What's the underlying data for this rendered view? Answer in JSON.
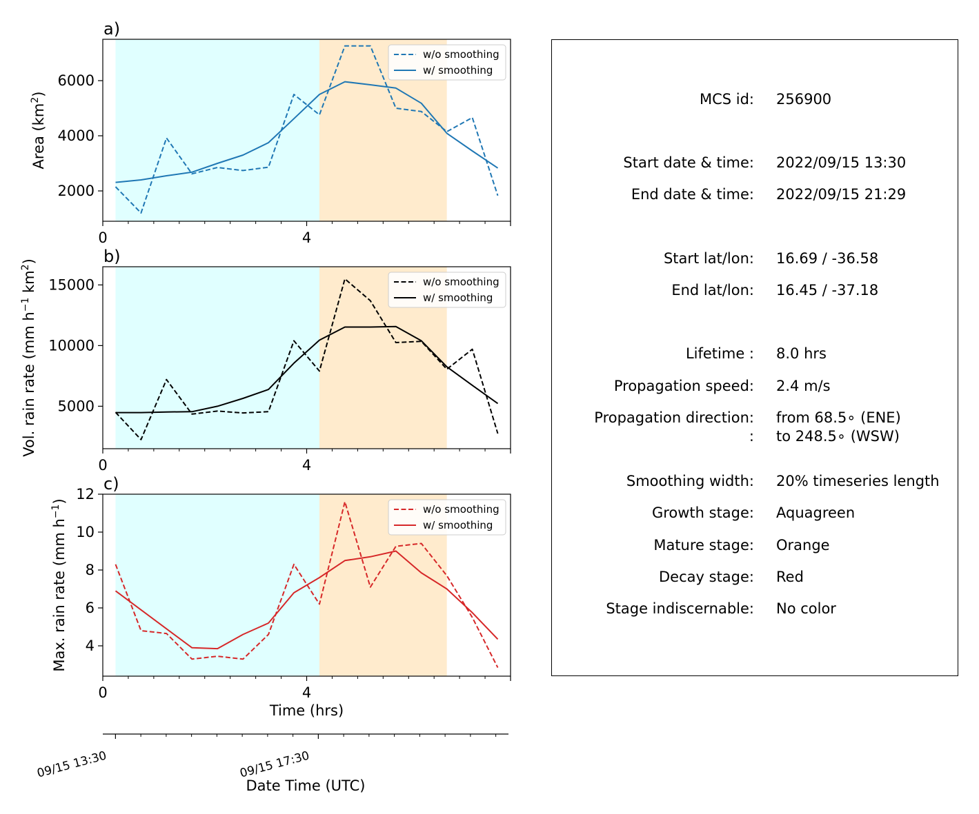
{
  "chart_data": [
    {
      "type": "line",
      "panel_label": "a)",
      "ylabel": "Area  (km²)",
      "xlim": [
        0,
        8
      ],
      "ylim": [
        900,
        7500
      ],
      "yticks": [
        2000,
        4000,
        6000
      ],
      "xtick_labels": [
        "0",
        "4"
      ],
      "stage_shading": {
        "growth": [
          0.25,
          4.25
        ],
        "mature": [
          4.25,
          6.75
        ]
      },
      "legend": {
        "position": "top-right",
        "entries": [
          "w/o smoothing",
          "w/ smoothing"
        ]
      },
      "color": "#1f77b4",
      "x": [
        0.25,
        0.75,
        1.25,
        1.75,
        2.25,
        2.75,
        3.25,
        3.75,
        4.25,
        4.75,
        5.25,
        5.75,
        6.25,
        6.75,
        7.25,
        7.75
      ],
      "series": [
        {
          "name": "w/o smoothing",
          "style": "dashed",
          "values": [
            2150,
            1200,
            3920,
            2620,
            2850,
            2740,
            2860,
            5500,
            4760,
            7260,
            7260,
            5000,
            4880,
            4150,
            4660,
            1830
          ]
        },
        {
          "name": "w/ smoothing",
          "style": "solid",
          "values": [
            2310,
            2400,
            2550,
            2680,
            3000,
            3300,
            3750,
            4620,
            5500,
            5960,
            5850,
            5730,
            5180,
            4090,
            3450,
            2830
          ]
        }
      ]
    },
    {
      "type": "line",
      "panel_label": "b)",
      "ylabel": "Vol. rain rate (mm h⁻¹ km²)",
      "xlim": [
        0,
        8
      ],
      "ylim": [
        1500,
        16500
      ],
      "yticks": [
        5000,
        10000,
        15000
      ],
      "xtick_labels": [
        "0",
        "4"
      ],
      "stage_shading": {
        "growth": [
          0.25,
          4.25
        ],
        "mature": [
          4.25,
          6.75
        ]
      },
      "legend": {
        "position": "top-right",
        "entries": [
          "w/o smoothing",
          "w/ smoothing"
        ]
      },
      "color": "#000000",
      "x": [
        0.25,
        0.75,
        1.25,
        1.75,
        2.25,
        2.75,
        3.25,
        3.75,
        4.25,
        4.75,
        5.25,
        5.75,
        6.25,
        6.75,
        7.25,
        7.75
      ],
      "series": [
        {
          "name": "w/o smoothing",
          "style": "dashed",
          "values": [
            4500,
            2250,
            7200,
            4350,
            4600,
            4450,
            4550,
            10400,
            7900,
            15500,
            13700,
            10250,
            10350,
            8050,
            9700,
            2750
          ]
        },
        {
          "name": "w/ smoothing",
          "style": "solid",
          "values": [
            4480,
            4480,
            4530,
            4550,
            5000,
            5650,
            6380,
            8550,
            10450,
            11530,
            11530,
            11570,
            10400,
            8250,
            6720,
            5230
          ]
        }
      ]
    },
    {
      "type": "line",
      "panel_label": "c)",
      "ylabel": "Max. rain rate  (mm h⁻¹)",
      "xlabel": "Time (hrs)",
      "xlim": [
        0,
        8
      ],
      "ylim": [
        2.4,
        12
      ],
      "yticks": [
        4,
        6,
        8,
        10,
        12
      ],
      "xtick_labels": [
        "0",
        "4"
      ],
      "stage_shading": {
        "growth": [
          0.25,
          4.25
        ],
        "mature": [
          4.25,
          6.75
        ]
      },
      "legend": {
        "position": "top-right",
        "entries": [
          "w/o smoothing",
          "w/ smoothing"
        ]
      },
      "color": "#d62728",
      "x": [
        0.25,
        0.75,
        1.25,
        1.75,
        2.25,
        2.75,
        3.25,
        3.75,
        4.25,
        4.75,
        5.25,
        5.75,
        6.25,
        6.75,
        7.25,
        7.75
      ],
      "series": [
        {
          "name": "w/o smoothing",
          "style": "dashed",
          "values": [
            8.3,
            4.8,
            4.65,
            3.3,
            3.45,
            3.3,
            4.6,
            8.3,
            6.2,
            11.6,
            7.1,
            9.25,
            9.4,
            7.7,
            5.5,
            2.85
          ]
        },
        {
          "name": "w/ smoothing",
          "style": "solid",
          "values": [
            6.9,
            5.9,
            4.9,
            3.9,
            3.85,
            4.6,
            5.2,
            6.8,
            7.6,
            8.5,
            8.7,
            9.0,
            7.85,
            7.0,
            5.75,
            4.35
          ]
        }
      ]
    }
  ],
  "secondary_axis": {
    "label": "Date Time (UTC)",
    "tick_labels": [
      "09/15 13:30",
      "09/15 17:30"
    ]
  },
  "colors": {
    "growth_shade": "#e0ffff",
    "mature_shade": "#ffebcd"
  },
  "info": {
    "rows": [
      {
        "label": "MCS id:",
        "value": "256900"
      },
      {
        "label": "Start date & time:",
        "value": "2022/09/15 13:30"
      },
      {
        "label": "End date & time:",
        "value": "2022/09/15 21:29"
      },
      {
        "label": "Start lat/lon:",
        "value": "16.69 / -36.58"
      },
      {
        "label": "End lat/lon:",
        "value": "16.45 / -37.18"
      },
      {
        "label": "Lifetime :",
        "value": "8.0 hrs"
      },
      {
        "label": "Propagation speed:",
        "value": "2.4 m/s"
      },
      {
        "label": "Propagation direction:",
        "value": "from  68.5∘ (ENE)"
      },
      {
        "label": ":",
        "value": "to   248.5∘ (WSW)"
      },
      {
        "label": "Smoothing width:",
        "value": "20% timeseries length"
      },
      {
        "label": "Growth stage:",
        "value": "Aquagreen"
      },
      {
        "label": "Mature stage:",
        "value": "Orange"
      },
      {
        "label": "Decay stage:",
        "value": "Red"
      },
      {
        "label": "Stage indiscernable:",
        "value": "No color"
      }
    ]
  }
}
